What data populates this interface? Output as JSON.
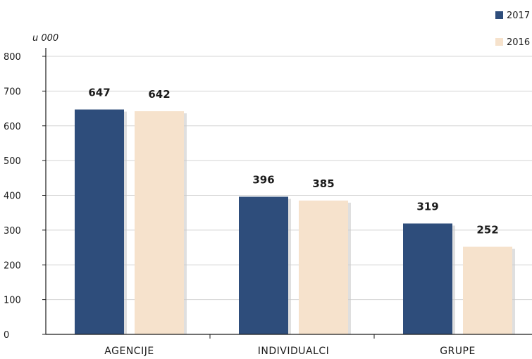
{
  "chart_data": {
    "type": "bar",
    "categories": [
      "AGENCIJE",
      "INDIVIDUALCI",
      "GRUPE"
    ],
    "series": [
      {
        "name": "2017",
        "values": [
          647,
          396,
          319
        ],
        "color": "#2e4d7b"
      },
      {
        "name": "2016",
        "values": [
          642,
          385,
          252
        ],
        "color": "#f6e2cc"
      }
    ],
    "ylabel": "u 000",
    "ylim": [
      0,
      800
    ],
    "yticks": [
      0,
      100,
      200,
      300,
      400,
      500,
      600,
      700,
      800
    ],
    "grid": true,
    "legend_position": "top-right",
    "data_labels": true
  }
}
